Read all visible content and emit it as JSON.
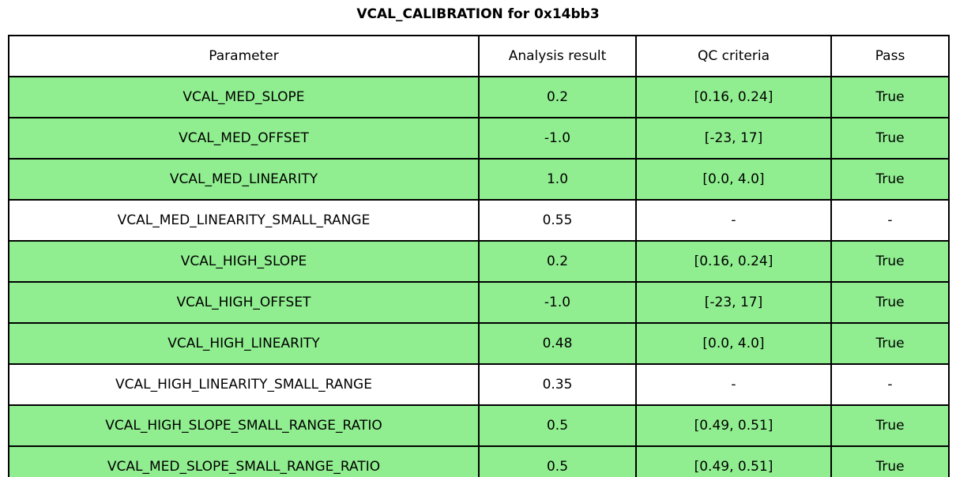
{
  "title": "VCAL_CALIBRATION for 0x14bb3",
  "colors": {
    "pass_row_bg": "#90EE90",
    "neutral_row_bg": "#FFFFFF",
    "border": "#000000",
    "text": "#000000"
  },
  "chart_data": {
    "type": "table",
    "title": "VCAL_CALIBRATION for 0x14bb3",
    "columns": [
      "Parameter",
      "Analysis result",
      "QC criteria",
      "Pass"
    ],
    "rows": [
      {
        "parameter": "VCAL_MED_SLOPE",
        "analysis_result": "0.2",
        "qc_criteria": "[0.16, 0.24]",
        "pass": "True",
        "highlighted": true
      },
      {
        "parameter": "VCAL_MED_OFFSET",
        "analysis_result": "-1.0",
        "qc_criteria": "[-23, 17]",
        "pass": "True",
        "highlighted": true
      },
      {
        "parameter": "VCAL_MED_LINEARITY",
        "analysis_result": "1.0",
        "qc_criteria": "[0.0, 4.0]",
        "pass": "True",
        "highlighted": true
      },
      {
        "parameter": "VCAL_MED_LINEARITY_SMALL_RANGE",
        "analysis_result": "0.55",
        "qc_criteria": "-",
        "pass": "-",
        "highlighted": false
      },
      {
        "parameter": "VCAL_HIGH_SLOPE",
        "analysis_result": "0.2",
        "qc_criteria": "[0.16, 0.24]",
        "pass": "True",
        "highlighted": true
      },
      {
        "parameter": "VCAL_HIGH_OFFSET",
        "analysis_result": "-1.0",
        "qc_criteria": "[-23, 17]",
        "pass": "True",
        "highlighted": true
      },
      {
        "parameter": "VCAL_HIGH_LINEARITY",
        "analysis_result": "0.48",
        "qc_criteria": "[0.0, 4.0]",
        "pass": "True",
        "highlighted": true
      },
      {
        "parameter": "VCAL_HIGH_LINEARITY_SMALL_RANGE",
        "analysis_result": "0.35",
        "qc_criteria": "-",
        "pass": "-",
        "highlighted": false
      },
      {
        "parameter": "VCAL_HIGH_SLOPE_SMALL_RANGE_RATIO",
        "analysis_result": "0.5",
        "qc_criteria": "[0.49, 0.51]",
        "pass": "True",
        "highlighted": true
      },
      {
        "parameter": "VCAL_MED_SLOPE_SMALL_RANGE_RATIO",
        "analysis_result": "0.5",
        "qc_criteria": "[0.49, 0.51]",
        "pass": "True",
        "highlighted": true
      }
    ]
  }
}
